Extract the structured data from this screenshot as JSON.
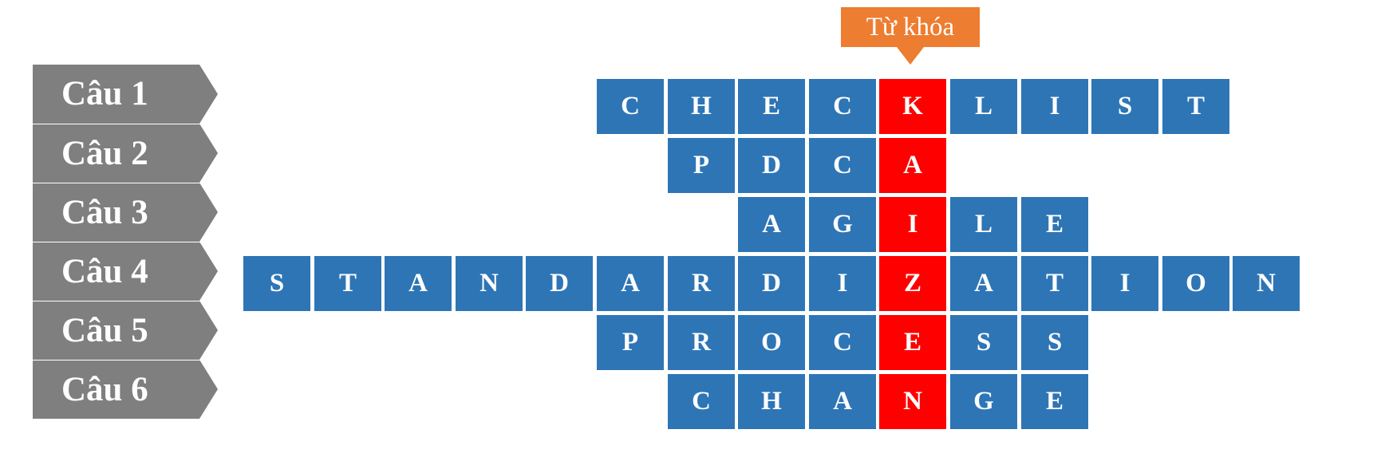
{
  "keyword_label": "Từ khóa",
  "questions": [
    "Câu 1",
    "Câu 2",
    "Câu 3",
    "Câu 4",
    "Câu 5",
    "Câu 6"
  ],
  "colors": {
    "cell": "#2e75b6",
    "keyword_cell": "#ff0000",
    "tag": "#7f7f7f",
    "badge": "#ed7d31"
  },
  "rows": [
    {
      "question": "Câu 1",
      "word": "CHECKLIST",
      "key_index": 4,
      "start_col": 5
    },
    {
      "question": "Câu 2",
      "word": "PDCA",
      "key_index": 3,
      "start_col": 6
    },
    {
      "question": "Câu 3",
      "word": "AGILE",
      "key_index": 2,
      "start_col": 7
    },
    {
      "question": "Câu 4",
      "word": "STANDARDIZATION",
      "key_index": 9,
      "start_col": 0
    },
    {
      "question": "Câu 5",
      "word": "PROCESS",
      "key_index": 4,
      "start_col": 5
    },
    {
      "question": "Câu 6",
      "word": "CHANGE",
      "key_index": 3,
      "start_col": 6
    }
  ],
  "keyword": "KAIZEN"
}
